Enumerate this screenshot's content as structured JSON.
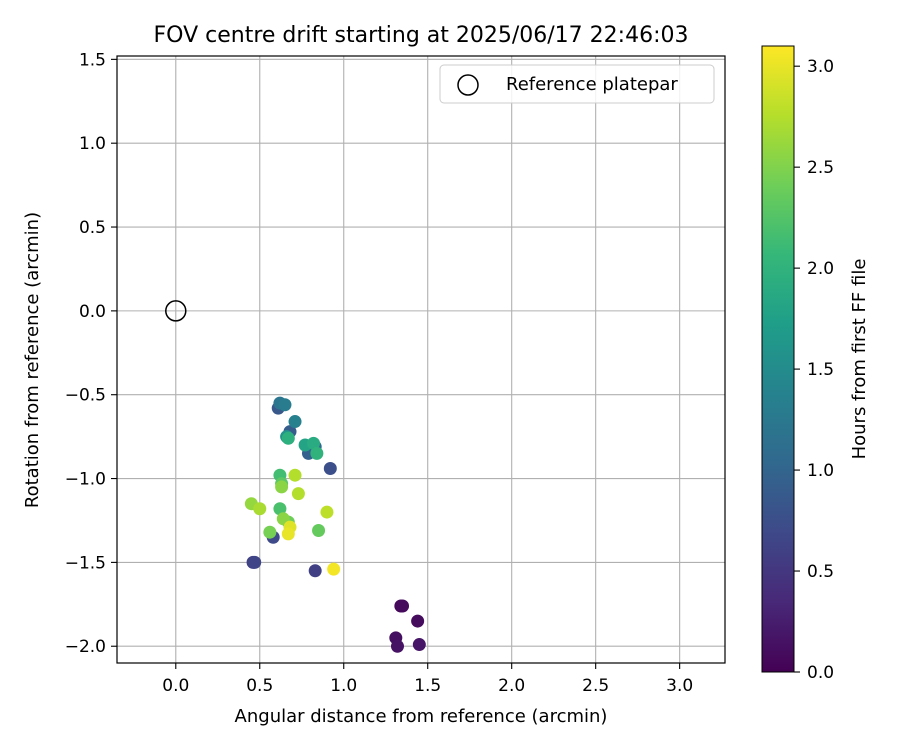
{
  "chart_data": {
    "type": "scatter",
    "title": "FOV centre drift starting at 2025/06/17 22:46:03",
    "xlabel": "Angular distance from reference (arcmin)",
    "ylabel": "Rotation from reference (arcmin)",
    "xlim": [
      -0.35,
      3.27
    ],
    "ylim": [
      -2.1,
      1.52
    ],
    "xticks": [
      0.0,
      0.5,
      1.0,
      1.5,
      2.0,
      2.5,
      3.0
    ],
    "xtick_labels": [
      "0.0",
      "0.5",
      "1.0",
      "1.5",
      "2.0",
      "2.5",
      "3.0"
    ],
    "yticks": [
      -2.0,
      -1.5,
      -1.0,
      -0.5,
      0.0,
      0.5,
      1.0,
      1.5
    ],
    "ytick_labels": [
      "−2.0",
      "−1.5",
      "−1.0",
      "−0.5",
      "0.0",
      "0.5",
      "1.0",
      "1.5"
    ],
    "grid": true,
    "legend": {
      "placement": "top-right",
      "entries": [
        "Reference platepar"
      ]
    },
    "reference_point": {
      "x": 0.0,
      "y": 0.0,
      "label": "Reference platepar",
      "marker": "hollow circle"
    },
    "colorbar": {
      "label": "Hours from first FF file",
      "range": [
        0.0,
        3.1
      ],
      "ticks": [
        0.0,
        0.5,
        1.0,
        1.5,
        2.0,
        2.5,
        3.0
      ],
      "tick_labels": [
        "0.0",
        "0.5",
        "1.0",
        "1.5",
        "2.0",
        "2.5",
        "3.0"
      ],
      "colormap": "viridis",
      "stops": [
        "#440154",
        "#482878",
        "#3e4989",
        "#31688e",
        "#26828e",
        "#1f9e89",
        "#35b779",
        "#6ece58",
        "#b5de2b",
        "#fde725"
      ]
    },
    "series": [
      {
        "points": [
          {
            "x": 1.34,
            "y": -1.76,
            "h": 0.05
          },
          {
            "x": 1.35,
            "y": -1.76,
            "h": 0.08
          },
          {
            "x": 1.44,
            "y": -1.85,
            "h": 0.1
          },
          {
            "x": 1.31,
            "y": -1.95,
            "h": 0.12
          },
          {
            "x": 1.32,
            "y": -2.0,
            "h": 0.15
          },
          {
            "x": 1.45,
            "y": -1.99,
            "h": 0.18
          },
          {
            "x": 0.46,
            "y": -1.5,
            "h": 0.6
          },
          {
            "x": 0.47,
            "y": -1.5,
            "h": 0.65
          },
          {
            "x": 0.83,
            "y": -1.55,
            "h": 0.6
          },
          {
            "x": 0.58,
            "y": -1.35,
            "h": 0.7
          },
          {
            "x": 0.92,
            "y": -0.94,
            "h": 0.75
          },
          {
            "x": 0.61,
            "y": -0.58,
            "h": 0.85
          },
          {
            "x": 0.68,
            "y": -0.72,
            "h": 0.9
          },
          {
            "x": 0.79,
            "y": -0.85,
            "h": 0.95
          },
          {
            "x": 0.83,
            "y": -0.81,
            "h": 1.05
          },
          {
            "x": 0.62,
            "y": -0.55,
            "h": 1.2
          },
          {
            "x": 0.65,
            "y": -0.56,
            "h": 1.3
          },
          {
            "x": 0.71,
            "y": -0.66,
            "h": 1.35
          },
          {
            "x": 0.66,
            "y": -0.75,
            "h": 1.6
          },
          {
            "x": 0.77,
            "y": -0.8,
            "h": 1.8
          },
          {
            "x": 0.82,
            "y": -0.79,
            "h": 1.9
          },
          {
            "x": 0.67,
            "y": -0.76,
            "h": 1.95
          },
          {
            "x": 0.84,
            "y": -0.85,
            "h": 2.0
          },
          {
            "x": 0.62,
            "y": -0.98,
            "h": 2.15
          },
          {
            "x": 0.62,
            "y": -1.18,
            "h": 2.2
          },
          {
            "x": 0.63,
            "y": -1.03,
            "h": 2.3
          },
          {
            "x": 0.85,
            "y": -1.31,
            "h": 2.35
          },
          {
            "x": 0.67,
            "y": -1.26,
            "h": 2.4
          },
          {
            "x": 0.56,
            "y": -1.32,
            "h": 2.45
          },
          {
            "x": 0.64,
            "y": -1.24,
            "h": 2.55
          },
          {
            "x": 0.63,
            "y": -1.05,
            "h": 2.55
          },
          {
            "x": 0.45,
            "y": -1.15,
            "h": 2.6
          },
          {
            "x": 0.5,
            "y": -1.18,
            "h": 2.7
          },
          {
            "x": 0.73,
            "y": -1.09,
            "h": 2.75
          },
          {
            "x": 0.71,
            "y": -0.98,
            "h": 2.75
          },
          {
            "x": 0.9,
            "y": -1.2,
            "h": 2.8
          },
          {
            "x": 0.68,
            "y": -1.29,
            "h": 2.95
          },
          {
            "x": 0.67,
            "y": -1.33,
            "h": 3.0
          },
          {
            "x": 0.94,
            "y": -1.54,
            "h": 3.05
          }
        ]
      }
    ]
  }
}
